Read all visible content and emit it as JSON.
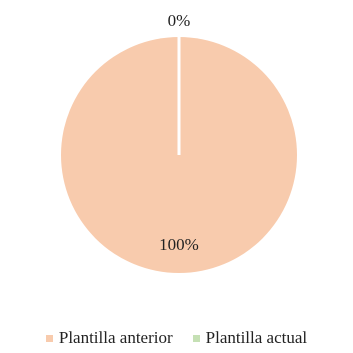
{
  "chart_data": {
    "type": "pie",
    "title": "",
    "categories": [
      "Plantilla anterior",
      "Plantilla actual"
    ],
    "values": [
      100,
      0
    ],
    "data_labels": [
      "100%",
      "0%"
    ],
    "colors": [
      "#f8cbad",
      "#c5e0b4"
    ],
    "legend_position": "bottom"
  }
}
